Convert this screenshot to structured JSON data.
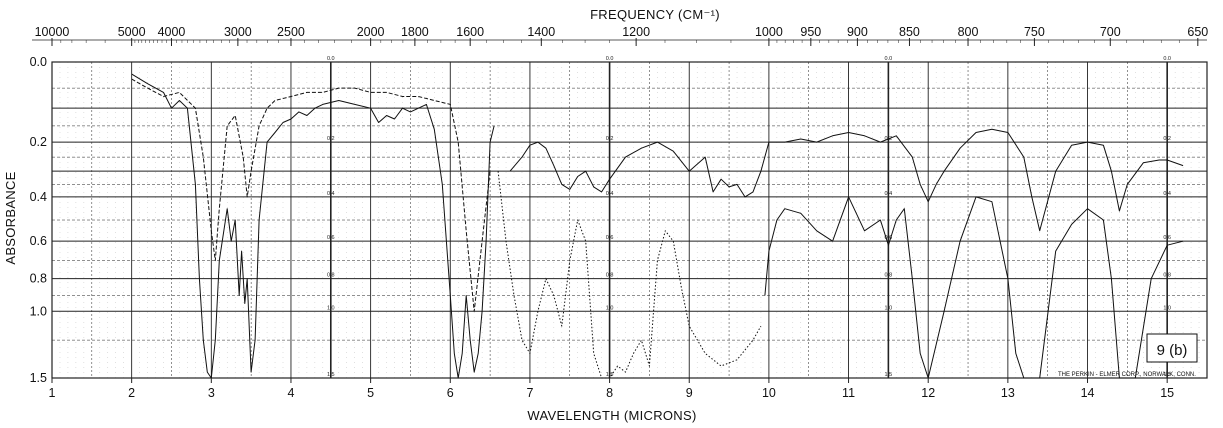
{
  "chart_data": {
    "type": "line",
    "title": "",
    "xlabel": "WAVELENGTH (MICRONS)",
    "ylabel": "ABSORBANCE",
    "top_axis_label": "FREQUENCY (CM⁻¹)",
    "xlim": [
      1,
      15.5
    ],
    "ylim": [
      0.0,
      1.5
    ],
    "x_ticks": [
      "1",
      "2",
      "3",
      "4",
      "5",
      "6",
      "7",
      "8",
      "9",
      "10",
      "11",
      "12",
      "13",
      "14",
      "15"
    ],
    "x_tick_values": [
      1,
      2,
      3,
      4,
      5,
      6,
      7,
      8,
      9,
      10,
      11,
      12,
      13,
      14,
      15
    ],
    "top_ticks": [
      "10000",
      "5000",
      "4000",
      "3000",
      "2500",
      "2000",
      "1800",
      "1600",
      "1400",
      "1200",
      "1000",
      "950",
      "900",
      "850",
      "800",
      "750",
      "700",
      "650"
    ],
    "top_tick_values": [
      10000,
      5000,
      4000,
      3000,
      2500,
      2000,
      1800,
      1600,
      1400,
      1200,
      1000,
      950,
      900,
      850,
      800,
      750,
      700,
      650
    ],
    "y_ticks": [
      "0.0",
      "0.2",
      "0.4",
      "0.6",
      "0.8",
      "1.0",
      "1.5"
    ],
    "y_tick_values": [
      0.0,
      0.2,
      0.4,
      0.6,
      0.8,
      1.0,
      1.5
    ],
    "inner_scale_labels": [
      "0.0",
      "0.2",
      "0.4",
      "0.6",
      "0.8",
      "1.0",
      "1.5"
    ],
    "grid": true,
    "sample_label": "9 (b)",
    "footer_note": "THE PERKIN - ELMER CORP., NORWALK, CONN.",
    "colors": {
      "line": "#111111",
      "grid": "#222222",
      "background": "#ffffff"
    },
    "series": [
      {
        "style": "solid",
        "x": [
          2.0,
          2.2,
          2.4,
          2.5,
          2.6,
          2.7,
          2.8,
          2.85,
          2.9,
          2.95,
          3.0,
          3.05,
          3.1,
          3.2,
          3.25,
          3.3,
          3.35,
          3.38,
          3.42,
          3.45,
          3.5,
          3.55,
          3.6,
          3.7,
          3.8,
          3.9,
          4.0,
          4.1,
          4.2,
          4.3,
          4.4,
          4.6,
          4.8,
          5.0,
          5.1,
          5.2,
          5.3,
          5.4,
          5.5,
          5.7,
          5.8,
          5.9,
          6.0,
          6.05,
          6.1,
          6.15,
          6.2,
          6.25,
          6.3,
          6.35,
          6.4,
          6.45,
          6.5,
          6.55
        ],
        "y": [
          0.02,
          0.04,
          0.06,
          0.1,
          0.08,
          0.1,
          0.35,
          0.8,
          1.2,
          1.45,
          1.5,
          1.2,
          0.7,
          0.45,
          0.6,
          0.5,
          0.9,
          0.65,
          0.95,
          0.8,
          1.45,
          1.2,
          0.5,
          0.2,
          0.17,
          0.14,
          0.13,
          0.11,
          0.12,
          0.1,
          0.09,
          0.08,
          0.09,
          0.1,
          0.14,
          0.12,
          0.13,
          0.1,
          0.11,
          0.09,
          0.16,
          0.35,
          0.9,
          1.3,
          1.5,
          1.3,
          0.9,
          1.2,
          1.45,
          1.3,
          1.0,
          0.6,
          0.2,
          0.15
        ]
      },
      {
        "style": "dashed",
        "x": [
          2.0,
          2.2,
          2.4,
          2.6,
          2.8,
          2.9,
          3.0,
          3.05,
          3.1,
          3.2,
          3.3,
          3.4,
          3.45,
          3.5,
          3.6,
          3.7,
          3.8,
          4.0,
          4.2,
          4.4,
          4.6,
          4.8,
          5.0,
          5.2,
          5.4,
          5.6,
          5.8,
          6.0,
          6.1,
          6.2,
          6.3,
          6.4,
          6.5
        ],
        "y": [
          0.03,
          0.05,
          0.07,
          0.06,
          0.1,
          0.25,
          0.55,
          0.7,
          0.45,
          0.15,
          0.12,
          0.25,
          0.4,
          0.3,
          0.15,
          0.1,
          0.08,
          0.07,
          0.06,
          0.06,
          0.05,
          0.05,
          0.06,
          0.06,
          0.07,
          0.07,
          0.08,
          0.09,
          0.2,
          0.55,
          1.0,
          0.6,
          0.3
        ]
      },
      {
        "style": "dotted",
        "x": [
          6.6,
          6.7,
          6.8,
          6.9,
          7.0,
          7.1,
          7.2,
          7.3,
          7.4,
          7.5,
          7.6,
          7.7,
          7.8,
          7.9,
          8.0,
          8.1,
          8.2,
          8.3,
          8.4,
          8.5,
          8.6,
          8.7,
          8.8,
          8.9,
          9.0,
          9.2,
          9.4,
          9.6,
          9.8,
          9.9
        ],
        "y": [
          0.3,
          0.6,
          0.9,
          1.2,
          1.3,
          1.0,
          0.8,
          0.9,
          1.1,
          0.7,
          0.5,
          0.6,
          1.3,
          1.5,
          1.5,
          1.4,
          1.45,
          1.3,
          1.2,
          1.4,
          0.7,
          0.55,
          0.6,
          0.85,
          1.1,
          1.3,
          1.4,
          1.35,
          1.2,
          1.1
        ]
      },
      {
        "style": "solid",
        "x": [
          6.75,
          6.9,
          7.0,
          7.1,
          7.2,
          7.3,
          7.4,
          7.5,
          7.6,
          7.7,
          7.8,
          7.9,
          8.0,
          8.2,
          8.4,
          8.6,
          8.8,
          9.0,
          9.2,
          9.3,
          9.4,
          9.5,
          9.6,
          9.7,
          9.8,
          9.9,
          10.0,
          10.2,
          10.4,
          10.6,
          10.8,
          11.0,
          11.2,
          11.4,
          11.6,
          11.8,
          11.9,
          12.0,
          12.1,
          12.2,
          12.4,
          12.6,
          12.8,
          13.0,
          13.2,
          13.3,
          13.4,
          13.6,
          13.8,
          14.0,
          14.2,
          14.3,
          14.4,
          14.5,
          14.7,
          14.9,
          15.0,
          15.2
        ],
        "y": [
          0.3,
          0.25,
          0.21,
          0.2,
          0.22,
          0.28,
          0.35,
          0.37,
          0.32,
          0.3,
          0.36,
          0.38,
          0.33,
          0.25,
          0.22,
          0.2,
          0.23,
          0.3,
          0.25,
          0.38,
          0.33,
          0.36,
          0.35,
          0.4,
          0.38,
          0.3,
          0.2,
          0.2,
          0.19,
          0.2,
          0.18,
          0.17,
          0.18,
          0.2,
          0.18,
          0.25,
          0.35,
          0.42,
          0.35,
          0.3,
          0.22,
          0.17,
          0.16,
          0.17,
          0.25,
          0.4,
          0.55,
          0.3,
          0.21,
          0.2,
          0.21,
          0.3,
          0.46,
          0.35,
          0.27,
          0.26,
          0.26,
          0.28
        ]
      },
      {
        "style": "solid",
        "x": [
          9.95,
          10.0,
          10.1,
          10.2,
          10.4,
          10.6,
          10.8,
          11.0,
          11.2,
          11.4,
          11.5,
          11.6,
          11.7,
          11.8,
          11.9,
          12.0,
          12.2,
          12.4,
          12.6,
          12.8,
          13.0,
          13.1,
          13.2,
          13.4,
          13.6,
          13.8,
          14.0,
          14.2,
          14.3,
          14.4,
          14.6,
          14.8,
          15.0,
          15.2
        ],
        "y": [
          0.9,
          0.65,
          0.5,
          0.45,
          0.47,
          0.55,
          0.6,
          0.4,
          0.55,
          0.5,
          0.62,
          0.5,
          0.45,
          0.8,
          1.3,
          1.5,
          1.0,
          0.6,
          0.4,
          0.42,
          0.8,
          1.3,
          1.5,
          1.5,
          0.65,
          0.52,
          0.45,
          0.5,
          0.8,
          1.5,
          1.5,
          0.8,
          0.62,
          0.6
        ]
      }
    ]
  }
}
